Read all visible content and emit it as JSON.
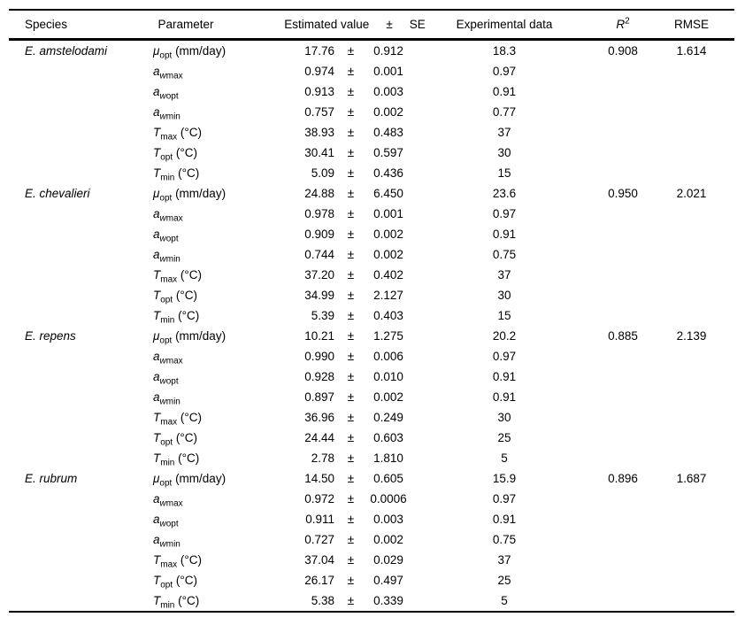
{
  "table": {
    "plus_minus": "±",
    "headers": {
      "species": "Species",
      "parameter": "Parameter",
      "estimated_value": "Estimated value",
      "plus_minus": "±",
      "se": "SE",
      "experimental_data": "Experimental data",
      "r2_base": "R",
      "r2_sup": "2",
      "rmse": "RMSE"
    },
    "groups": [
      {
        "species": "E. amstelodami",
        "r2": "0.908",
        "rmse": "1.614",
        "rows": [
          {
            "param": {
              "base": "μ",
              "sub_i": "",
              "sub": "opt",
              "suffix": " (mm/day)"
            },
            "estimated": "17.76",
            "se": "0.912",
            "experimental": "18.3"
          },
          {
            "param": {
              "base": "a",
              "sub_i": "w",
              "sub": "max",
              "suffix": ""
            },
            "estimated": "0.974",
            "se": "0.001",
            "experimental": "0.97"
          },
          {
            "param": {
              "base": "a",
              "sub_i": "w",
              "sub": "opt",
              "suffix": ""
            },
            "estimated": "0.913",
            "se": "0.003",
            "experimental": "0.91"
          },
          {
            "param": {
              "base": "a",
              "sub_i": "w",
              "sub": "min",
              "suffix": ""
            },
            "estimated": "0.757",
            "se": "0.002",
            "experimental": "0.77"
          },
          {
            "param": {
              "base": "T",
              "sub_i": "",
              "sub": "max",
              "suffix": " (°C)"
            },
            "estimated": "38.93",
            "se": "0.483",
            "experimental": "37"
          },
          {
            "param": {
              "base": "T",
              "sub_i": "",
              "sub": "opt",
              "suffix": " (°C)"
            },
            "estimated": "30.41",
            "se": "0.597",
            "experimental": "30"
          },
          {
            "param": {
              "base": "T",
              "sub_i": "",
              "sub": "min",
              "suffix": " (°C)"
            },
            "estimated": "5.09",
            "se": "0.436",
            "experimental": "15"
          }
        ]
      },
      {
        "species": "E. chevalieri",
        "r2": "0.950",
        "rmse": "2.021",
        "rows": [
          {
            "param": {
              "base": "μ",
              "sub_i": "",
              "sub": "opt",
              "suffix": " (mm/day)"
            },
            "estimated": "24.88",
            "se": "6.450",
            "experimental": "23.6"
          },
          {
            "param": {
              "base": "a",
              "sub_i": "w",
              "sub": "max",
              "suffix": ""
            },
            "estimated": "0.978",
            "se": "0.001",
            "experimental": "0.97"
          },
          {
            "param": {
              "base": "a",
              "sub_i": "w",
              "sub": "opt",
              "suffix": ""
            },
            "estimated": "0.909",
            "se": "0.002",
            "experimental": "0.91"
          },
          {
            "param": {
              "base": "a",
              "sub_i": "w",
              "sub": "min",
              "suffix": ""
            },
            "estimated": "0.744",
            "se": "0.002",
            "experimental": "0.75"
          },
          {
            "param": {
              "base": "T",
              "sub_i": "",
              "sub": "max",
              "suffix": " (°C)"
            },
            "estimated": "37.20",
            "se": "0.402",
            "experimental": "37"
          },
          {
            "param": {
              "base": "T",
              "sub_i": "",
              "sub": "opt",
              "suffix": " (°C)"
            },
            "estimated": "34.99",
            "se": "2.127",
            "experimental": "30"
          },
          {
            "param": {
              "base": "T",
              "sub_i": "",
              "sub": "min",
              "suffix": " (°C)"
            },
            "estimated": "5.39",
            "se": "0.403",
            "experimental": "15"
          }
        ]
      },
      {
        "species": "E. repens",
        "r2": "0.885",
        "rmse": "2.139",
        "rows": [
          {
            "param": {
              "base": "μ",
              "sub_i": "",
              "sub": "opt",
              "suffix": " (mm/day)"
            },
            "estimated": "10.21",
            "se": "1.275",
            "experimental": "20.2"
          },
          {
            "param": {
              "base": "a",
              "sub_i": "w",
              "sub": "max",
              "suffix": ""
            },
            "estimated": "0.990",
            "se": "0.006",
            "experimental": "0.97"
          },
          {
            "param": {
              "base": "a",
              "sub_i": "w",
              "sub": "opt",
              "suffix": ""
            },
            "estimated": "0.928",
            "se": "0.010",
            "experimental": "0.91"
          },
          {
            "param": {
              "base": "a",
              "sub_i": "w",
              "sub": "min",
              "suffix": ""
            },
            "estimated": "0.897",
            "se": "0.002",
            "experimental": "0.91"
          },
          {
            "param": {
              "base": "T",
              "sub_i": "",
              "sub": "max",
              "suffix": " (°C)"
            },
            "estimated": "36.96",
            "se": "0.249",
            "experimental": "30"
          },
          {
            "param": {
              "base": "T",
              "sub_i": "",
              "sub": "opt",
              "suffix": " (°C)"
            },
            "estimated": "24.44",
            "se": "0.603",
            "experimental": "25"
          },
          {
            "param": {
              "base": "T",
              "sub_i": "",
              "sub": "min",
              "suffix": " (°C)"
            },
            "estimated": "2.78",
            "se": "1.810",
            "experimental": "5"
          }
        ]
      },
      {
        "species": "E. rubrum",
        "r2": "0.896",
        "rmse": "1.687",
        "rows": [
          {
            "param": {
              "base": "μ",
              "sub_i": "",
              "sub": "opt",
              "suffix": " (mm/day)"
            },
            "estimated": "14.50",
            "se": "0.605",
            "experimental": "15.9"
          },
          {
            "param": {
              "base": "a",
              "sub_i": "w",
              "sub": "max",
              "suffix": ""
            },
            "estimated": "0.972",
            "se": "0.0006",
            "experimental": "0.97"
          },
          {
            "param": {
              "base": "a",
              "sub_i": "w",
              "sub": "opt",
              "suffix": ""
            },
            "estimated": "0.911",
            "se": "0.003",
            "experimental": "0.91"
          },
          {
            "param": {
              "base": "a",
              "sub_i": "w",
              "sub": "min",
              "suffix": ""
            },
            "estimated": "0.727",
            "se": "0.002",
            "experimental": "0.75"
          },
          {
            "param": {
              "base": "T",
              "sub_i": "",
              "sub": "max",
              "suffix": " (°C)"
            },
            "estimated": "37.04",
            "se": "0.029",
            "experimental": "37"
          },
          {
            "param": {
              "base": "T",
              "sub_i": "",
              "sub": "opt",
              "suffix": " (°C)"
            },
            "estimated": "26.17",
            "se": "0.497",
            "experimental": "25"
          },
          {
            "param": {
              "base": "T",
              "sub_i": "",
              "sub": "min",
              "suffix": " (°C)"
            },
            "estimated": "5.38",
            "se": "0.339",
            "experimental": "5"
          }
        ]
      }
    ]
  }
}
